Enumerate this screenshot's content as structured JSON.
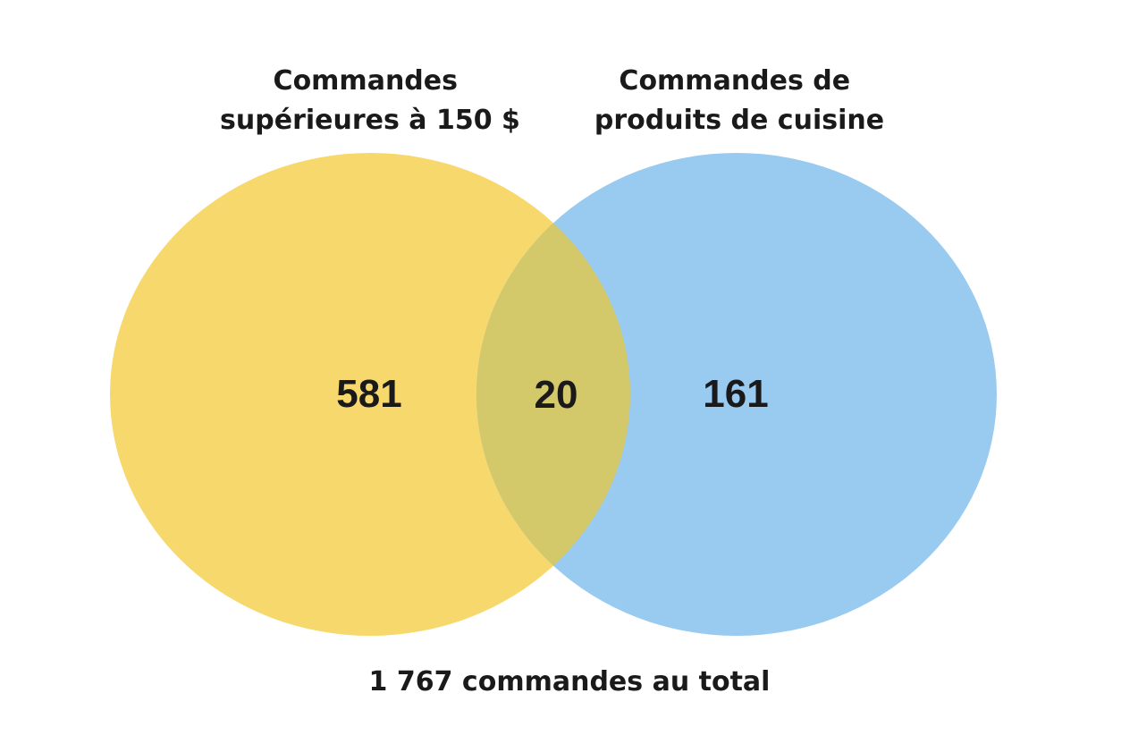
{
  "venn": {
    "sets": [
      {
        "title_lines": [
          "Commandes",
          "supérieures à 150 $"
        ],
        "color": "#f7d86c"
      },
      {
        "title_lines": [
          "Commandes de",
          "produits de cuisine"
        ],
        "color": "#99caf0"
      }
    ],
    "overlap_color": "#d3c86a",
    "counts": {
      "only_a": "581",
      "intersection": "20",
      "only_b": "161"
    },
    "total": "1 767 commandes au total"
  }
}
